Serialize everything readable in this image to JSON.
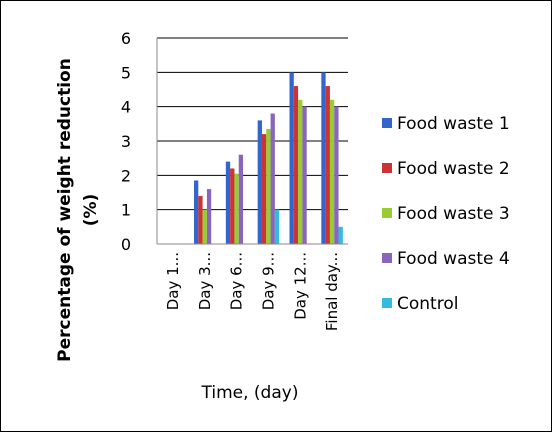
{
  "chart_data": {
    "type": "bar",
    "title": "",
    "xlabel": "Time, (day)",
    "ylabel_line1": "Percentage of weight reduction",
    "ylabel_line2": "(%)",
    "ylim": [
      0,
      6
    ],
    "yticks": [
      "0",
      "1",
      "2",
      "3",
      "4",
      "5",
      "6"
    ],
    "grid": true,
    "legend_position": "right",
    "categories": [
      "Day 1...",
      "Day 3...",
      "Day 6...",
      "Day 9...",
      "Day 12...",
      "Final day..."
    ],
    "series": [
      {
        "name": "Food waste 1",
        "color": "#3366cc",
        "values": [
          0,
          1.85,
          2.4,
          3.6,
          5.0,
          5.0
        ]
      },
      {
        "name": "Food waste 2",
        "color": "#cc3333",
        "values": [
          0,
          1.4,
          2.2,
          3.2,
          4.6,
          4.6
        ]
      },
      {
        "name": "Food waste 3",
        "color": "#99cc33",
        "values": [
          0,
          1.0,
          2.05,
          3.35,
          4.2,
          4.2
        ]
      },
      {
        "name": "Food waste 4",
        "color": "#8866bb",
        "values": [
          0,
          1.6,
          2.6,
          3.8,
          4.0,
          4.0
        ]
      },
      {
        "name": "Control",
        "color": "#33bbdd",
        "values": [
          0,
          0,
          0,
          1.0,
          0,
          0.5
        ]
      }
    ]
  }
}
